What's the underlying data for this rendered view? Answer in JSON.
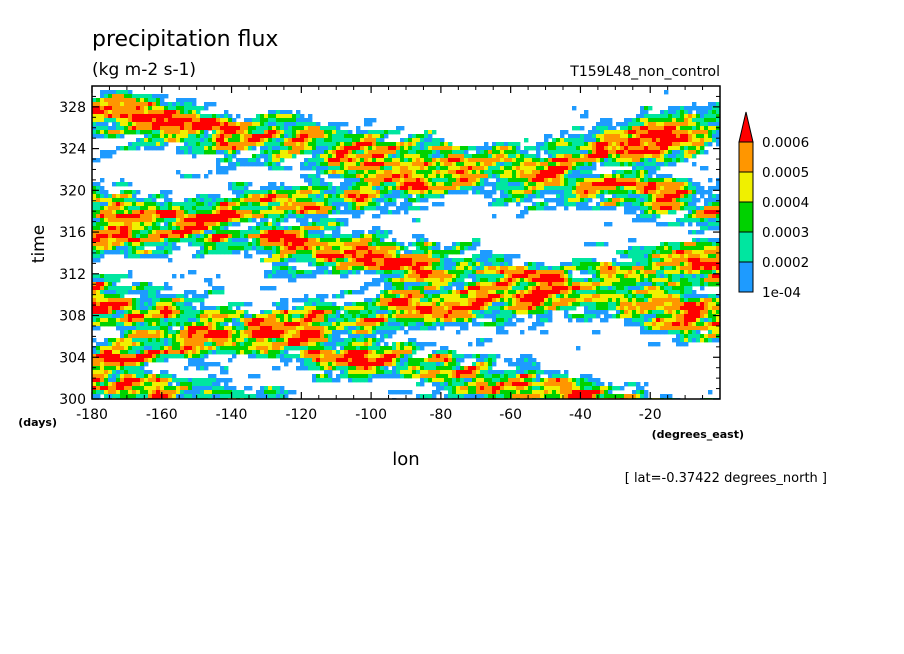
{
  "chart_data": {
    "type": "heatmap",
    "title": "precipitation flux",
    "units": "(kg m-2 s-1)",
    "run_label": "T159L48_non_control",
    "xlabel": "lon",
    "x_units": "(degrees_east)",
    "ylabel": "time",
    "y_units": "(days)",
    "xlim": [
      -180,
      0
    ],
    "ylim": [
      300,
      330
    ],
    "x_ticks": [
      -180,
      -160,
      -140,
      -120,
      -100,
      -80,
      -60,
      -40,
      -20
    ],
    "x_tick_labels": [
      "-180",
      "-160",
      "-140",
      "-120",
      "-100",
      "-80",
      "-60",
      "-40",
      "-20"
    ],
    "y_ticks": [
      300,
      304,
      308,
      312,
      316,
      320,
      324,
      328
    ],
    "y_tick_labels": [
      "300",
      "304",
      "308",
      "312",
      "316",
      "320",
      "324",
      "328"
    ],
    "footnote": "[ lat=-0.37422 degrees_north ]",
    "colorbar": {
      "levels": [
        0.0001,
        0.0002,
        0.0003,
        0.0004,
        0.0005,
        0.0006
      ],
      "labels": [
        "1e-04",
        "0.0002",
        "0.0003",
        "0.0004",
        "0.0005",
        "0.0006"
      ],
      "colors": [
        "#1e9bff",
        "#00e6a0",
        "#00d200",
        "#f0f000",
        "#ff9600",
        "#ff0000"
      ],
      "below_color": "#ffffff",
      "extend": "max"
    }
  }
}
